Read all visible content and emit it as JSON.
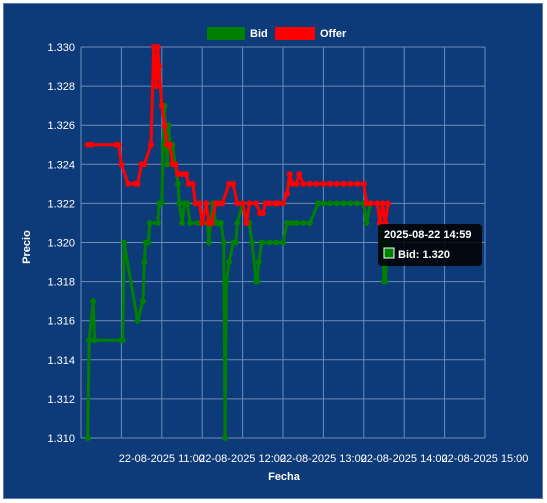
{
  "chart_data": {
    "type": "line",
    "xlabel": "Fecha",
    "ylabel": "Precio",
    "ylim": [
      1.31,
      1.33
    ],
    "yticks": [
      "1.310",
      "1.312",
      "1.314",
      "1.316",
      "1.318",
      "1.320",
      "1.322",
      "1.324",
      "1.326",
      "1.328",
      "1.330"
    ],
    "xticks": [
      "22-08-2025 11:00",
      "22-08-2025 12:00",
      "22-08-2025 13:00",
      "22-08-2025 14:00",
      "22-08-2025 15:00"
    ],
    "legend_position": "top",
    "grid": true,
    "series": [
      {
        "name": "Bid",
        "color": "#008000",
        "points": [
          [
            "10:05",
            1.31
          ],
          [
            "10:06",
            1.315
          ],
          [
            "10:09",
            1.317
          ],
          [
            "10:10",
            1.315
          ],
          [
            "10:30",
            1.315
          ],
          [
            "10:31",
            1.315
          ],
          [
            "10:32",
            1.32
          ],
          [
            "10:42",
            1.316
          ],
          [
            "10:46",
            1.317
          ],
          [
            "10:47",
            1.319
          ],
          [
            "10:48",
            1.32
          ],
          [
            "10:50",
            1.32
          ],
          [
            "10:51",
            1.321
          ],
          [
            "10:57",
            1.321
          ],
          [
            "10:58",
            1.322
          ],
          [
            "11:00",
            1.322
          ],
          [
            "11:01",
            1.325
          ],
          [
            "11:02",
            1.327
          ],
          [
            "11:03",
            1.325
          ],
          [
            "11:04",
            1.324
          ],
          [
            "11:05",
            1.326
          ],
          [
            "11:06",
            1.325
          ],
          [
            "11:08",
            1.325
          ],
          [
            "11:10",
            1.324
          ],
          [
            "11:12",
            1.323
          ],
          [
            "11:13",
            1.322
          ],
          [
            "11:15",
            1.321
          ],
          [
            "11:17",
            1.322
          ],
          [
            "11:19",
            1.322
          ],
          [
            "11:21",
            1.321
          ],
          [
            "11:27",
            1.321
          ],
          [
            "11:30",
            1.321
          ],
          [
            "11:34",
            1.321
          ],
          [
            "11:35",
            1.32
          ],
          [
            "11:36",
            1.321
          ],
          [
            "11:38",
            1.322
          ],
          [
            "11:40",
            1.321
          ],
          [
            "11:42",
            1.321
          ],
          [
            "11:44",
            1.321
          ],
          [
            "11:46",
            1.32
          ],
          [
            "11:47",
            1.31
          ],
          [
            "11:48",
            1.318
          ],
          [
            "11:50",
            1.319
          ],
          [
            "11:53",
            1.32
          ],
          [
            "11:55",
            1.32
          ],
          [
            "11:56",
            1.321
          ],
          [
            "12:00",
            1.322
          ],
          [
            "12:03",
            1.321
          ],
          [
            "12:05",
            1.321
          ],
          [
            "12:07",
            1.32
          ],
          [
            "12:10",
            1.318
          ],
          [
            "12:11",
            1.318
          ],
          [
            "12:12",
            1.319
          ],
          [
            "12:14",
            1.32
          ],
          [
            "12:20",
            1.32
          ],
          [
            "12:25",
            1.32
          ],
          [
            "12:30",
            1.32
          ],
          [
            "12:33",
            1.321
          ],
          [
            "12:36",
            1.321
          ],
          [
            "12:40",
            1.321
          ],
          [
            "12:45",
            1.321
          ],
          [
            "12:50",
            1.321
          ],
          [
            "12:56",
            1.322
          ],
          [
            "13:00",
            1.322
          ],
          [
            "13:05",
            1.322
          ],
          [
            "13:10",
            1.322
          ],
          [
            "13:15",
            1.322
          ],
          [
            "13:20",
            1.322
          ],
          [
            "13:25",
            1.322
          ],
          [
            "13:30",
            1.322
          ],
          [
            "13:32",
            1.321
          ],
          [
            "13:35",
            1.322
          ],
          [
            "13:40",
            1.322
          ],
          [
            "13:42",
            1.321
          ],
          [
            "13:44",
            1.32
          ],
          [
            "13:45",
            1.318
          ],
          [
            "13:46",
            1.318
          ],
          [
            "13:48",
            1.32
          ]
        ]
      },
      {
        "name": "Offer",
        "color": "#ff0000",
        "points": [
          [
            "10:05",
            1.325
          ],
          [
            "10:08",
            1.325
          ],
          [
            "10:26",
            1.325
          ],
          [
            "10:28",
            1.325
          ],
          [
            "10:30",
            1.324
          ],
          [
            "10:35",
            1.323
          ],
          [
            "10:40",
            1.323
          ],
          [
            "10:42",
            1.323
          ],
          [
            "10:45",
            1.324
          ],
          [
            "10:47",
            1.324
          ],
          [
            "10:52",
            1.325
          ],
          [
            "10:54",
            1.33
          ],
          [
            "10:56",
            1.328
          ],
          [
            "10:57",
            1.33
          ],
          [
            "10:58",
            1.329
          ],
          [
            "11:00",
            1.327
          ],
          [
            "11:02",
            1.326
          ],
          [
            "11:04",
            1.325
          ],
          [
            "11:06",
            1.325
          ],
          [
            "11:08",
            1.324
          ],
          [
            "11:10",
            1.324
          ],
          [
            "11:12",
            1.3235
          ],
          [
            "11:15",
            1.3235
          ],
          [
            "11:18",
            1.3235
          ],
          [
            "11:20",
            1.323
          ],
          [
            "11:23",
            1.323
          ],
          [
            "11:25",
            1.322
          ],
          [
            "11:28",
            1.322
          ],
          [
            "11:30",
            1.321
          ],
          [
            "11:33",
            1.322
          ],
          [
            "11:35",
            1.321
          ],
          [
            "11:37",
            1.321
          ],
          [
            "11:40",
            1.322
          ],
          [
            "11:42",
            1.322
          ],
          [
            "11:45",
            1.322
          ],
          [
            "11:50",
            1.323
          ],
          [
            "11:53",
            1.323
          ],
          [
            "11:56",
            1.322
          ],
          [
            "12:00",
            1.322
          ],
          [
            "12:03",
            1.321
          ],
          [
            "12:05",
            1.322
          ],
          [
            "12:10",
            1.322
          ],
          [
            "12:13",
            1.3215
          ],
          [
            "12:15",
            1.3215
          ],
          [
            "12:17",
            1.322
          ],
          [
            "12:20",
            1.322
          ],
          [
            "12:24",
            1.322
          ],
          [
            "12:26",
            1.322
          ],
          [
            "12:30",
            1.322
          ],
          [
            "12:33",
            1.3225
          ],
          [
            "12:35",
            1.3235
          ],
          [
            "12:37",
            1.323
          ],
          [
            "12:40",
            1.323
          ],
          [
            "12:42",
            1.3235
          ],
          [
            "12:45",
            1.323
          ],
          [
            "12:50",
            1.323
          ],
          [
            "12:55",
            1.323
          ],
          [
            "13:00",
            1.323
          ],
          [
            "13:05",
            1.323
          ],
          [
            "13:10",
            1.323
          ],
          [
            "13:15",
            1.323
          ],
          [
            "13:20",
            1.323
          ],
          [
            "13:25",
            1.323
          ],
          [
            "13:30",
            1.323
          ],
          [
            "13:32",
            1.322
          ],
          [
            "13:35",
            1.322
          ],
          [
            "13:40",
            1.322
          ],
          [
            "13:42",
            1.321
          ],
          [
            "13:44",
            1.322
          ],
          [
            "13:46",
            1.321
          ],
          [
            "13:48",
            1.322
          ]
        ]
      }
    ],
    "tooltip": {
      "title": "2025-08-22 14:59",
      "label": "Bid: 1.320",
      "swatch_color": "#008000"
    }
  }
}
